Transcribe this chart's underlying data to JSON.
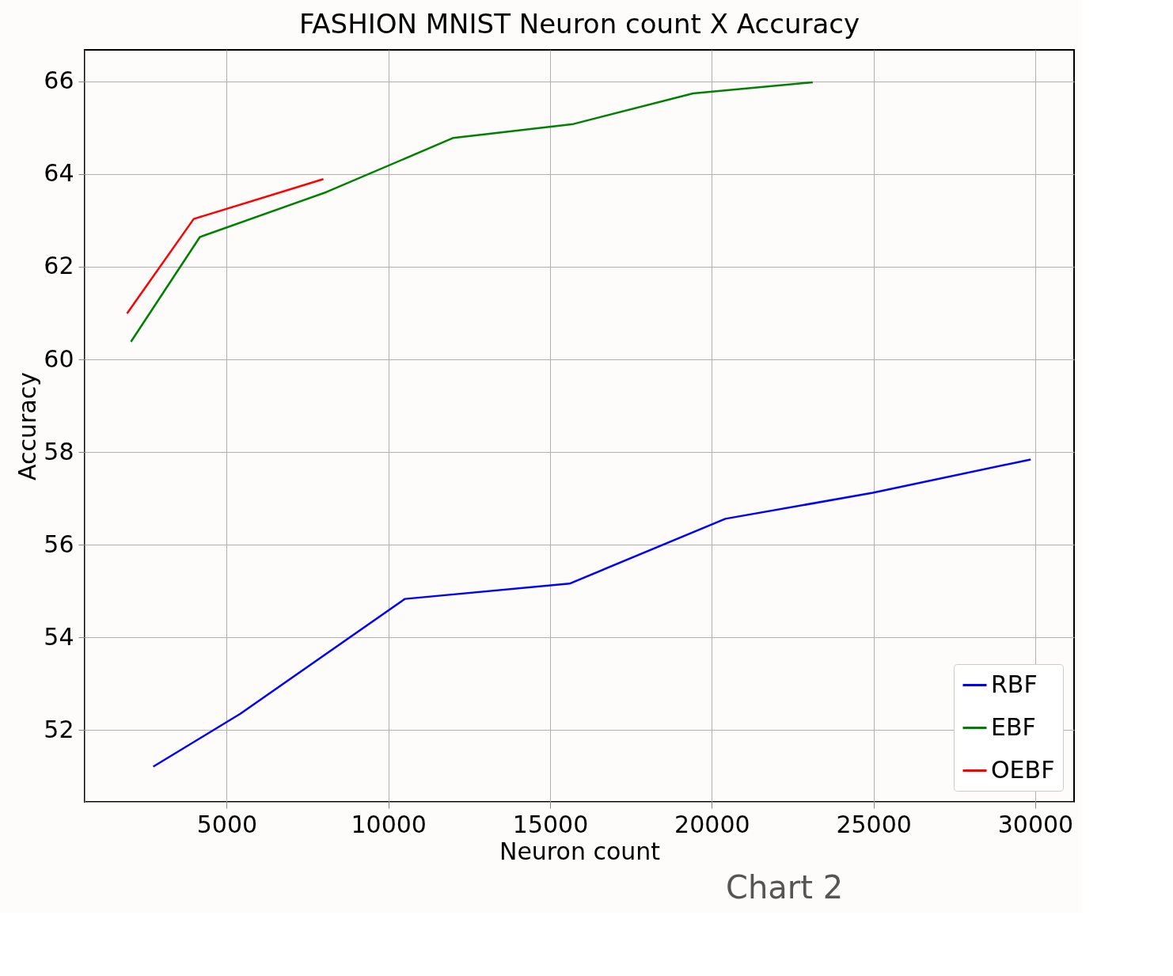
{
  "chart_data": {
    "type": "line",
    "title": "FASHION MNIST Neuron count X Accuracy",
    "xlabel": "Neuron count",
    "ylabel": "Accuracy",
    "xlim": [
      610,
      31200
    ],
    "ylim": [
      50.45,
      66.68
    ],
    "xticks": [
      5000,
      10000,
      15000,
      20000,
      25000,
      30000
    ],
    "yticks": [
      52,
      54,
      56,
      58,
      60,
      62,
      64,
      66
    ],
    "grid": true,
    "legend": "bottom right",
    "annotations": [
      "Chart 2"
    ],
    "series": [
      {
        "name": "RBF",
        "color": "#0000ff",
        "x": [
          2730,
          5420,
          10510,
          15600,
          20420,
          24980,
          29860
        ],
        "values": [
          51.21,
          52.35,
          54.83,
          55.16,
          56.56,
          57.12,
          57.84
        ]
      },
      {
        "name": "EBF",
        "color": "#008000",
        "x": [
          2040,
          4170,
          8080,
          12010,
          15720,
          19420,
          23120
        ],
        "values": [
          60.38,
          62.64,
          63.61,
          64.78,
          65.08,
          65.74,
          65.98
        ]
      },
      {
        "name": "OEBF",
        "color": "#ff0000",
        "x": [
          1920,
          3980,
          7990
        ],
        "values": [
          60.99,
          63.03,
          63.89
        ]
      }
    ]
  }
}
